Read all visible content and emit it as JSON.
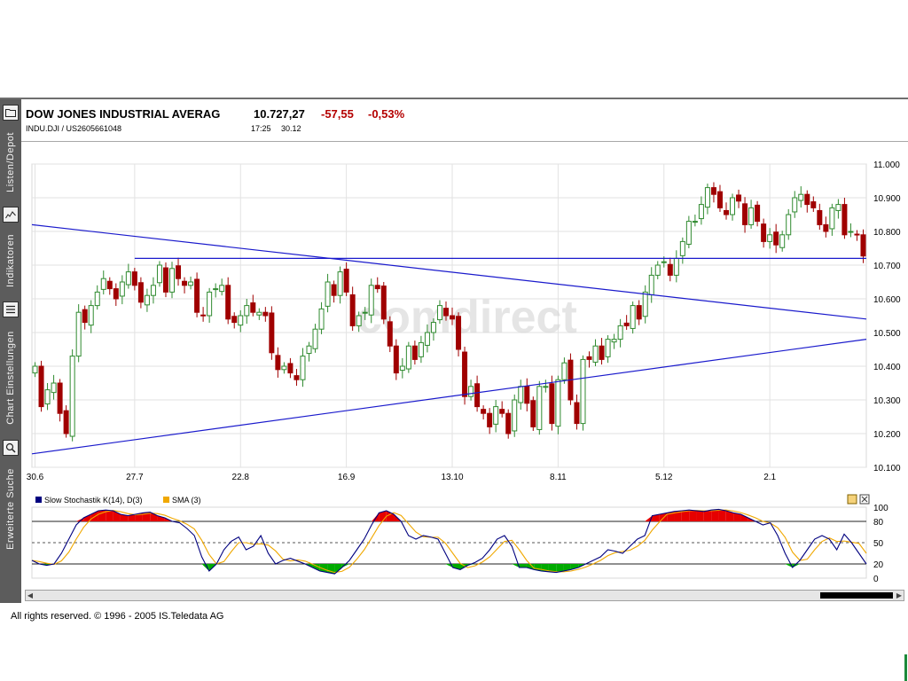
{
  "header": {
    "title": "DOW JONES INDUSTRIAL AVERAG",
    "price": "10.727,27",
    "change": "-57,55",
    "change_pct": "-0,53%",
    "symbol": "INDU.DJI  /  US2605661048",
    "time": "17:25",
    "date": "30.12",
    "change_color": "#b40000"
  },
  "sidebar": {
    "items": [
      {
        "label": "Listen/Depot",
        "icon": "folder-icon"
      },
      {
        "label": "Indikatoren",
        "icon": "indicator-chart-icon"
      },
      {
        "label": "Chart Einstellungen",
        "icon": "settings-list-icon"
      },
      {
        "label": "Erweiterte Suche",
        "icon": "magnifier-icon"
      }
    ]
  },
  "watermark": "comdirect",
  "copyright": "All rights reserved. © 1996 - 2005 IS.Teledata AG",
  "chart_data": [
    {
      "type": "candlestick",
      "title": "DOW JONES INDUSTRIAL AVERAG",
      "ylim": [
        10100,
        11000
      ],
      "y_ticks": [
        "10.100",
        "10.200",
        "10.300",
        "10.400",
        "10.500",
        "10.600",
        "10.700",
        "10.800",
        "10.900",
        "11.000"
      ],
      "x_ticks": [
        "30.6",
        "27.7",
        "22.8",
        "16.9",
        "13.10",
        "8.11",
        "5.12",
        "2.1"
      ],
      "grid": true,
      "up_color": "#2f8a2f",
      "down_color": "#a00000",
      "close": [
        10400,
        10280,
        10330,
        10350,
        10260,
        10200,
        10430,
        10560,
        10530,
        10580,
        10620,
        10660,
        10630,
        10600,
        10650,
        10680,
        10640,
        10590,
        10610,
        10640,
        10700,
        10620,
        10690,
        10660,
        10640,
        10650,
        10560,
        10550,
        10620,
        10630,
        10640,
        10540,
        10530,
        10550,
        10580,
        10560,
        10560,
        10550,
        10440,
        10390,
        10400,
        10380,
        10360,
        10430,
        10460,
        10510,
        10570,
        10650,
        10610,
        10680,
        10620,
        10520,
        10550,
        10560,
        10640,
        10630,
        10540,
        10460,
        10380,
        10400,
        10460,
        10420,
        10470,
        10500,
        10530,
        10580,
        10550,
        10540,
        10450,
        10310,
        10340,
        10280,
        10260,
        10220,
        10280,
        10260,
        10200,
        10300,
        10340,
        10290,
        10220,
        10340,
        10340,
        10230,
        10360,
        10410,
        10300,
        10230,
        10420,
        10420,
        10460,
        10420,
        10480,
        10480,
        10520,
        10520,
        10580,
        10540,
        10620,
        10670,
        10700,
        10710,
        10670,
        10720,
        10770,
        10830,
        10830,
        10880,
        10930,
        10910,
        10870,
        10850,
        10900,
        10890,
        10820,
        10870,
        10830,
        10770,
        10790,
        10760,
        10790,
        10850,
        10900,
        10910,
        10880,
        10870,
        10820,
        10800,
        10870,
        10880,
        10790,
        10800,
        10790,
        10727
      ],
      "series": [
        {
          "name": "Trendlinie 1",
          "color": "#1a1acc",
          "from": [
            "30.6",
            10820
          ],
          "to": [
            "2.1",
            10540
          ]
        },
        {
          "name": "Trendlinie 2",
          "color": "#1a1acc",
          "from": [
            "30.6",
            10140
          ],
          "to": [
            "2.1",
            10480
          ]
        },
        {
          "name": "Trendlinie 3",
          "color": "#1a1acc",
          "from": [
            "27.7",
            10720
          ],
          "to": [
            "2.1",
            10720
          ]
        }
      ]
    },
    {
      "type": "line",
      "legend": [
        {
          "name": "Slow Stochastik K(14), D(3)",
          "color": "#00007f"
        },
        {
          "name": "SMA (3)",
          "color": "#f0a800"
        }
      ],
      "ylim": [
        0,
        100
      ],
      "y_ticks": [
        "0",
        "20",
        "50",
        "80",
        "100"
      ],
      "levels": [
        20,
        50,
        80
      ],
      "overbought_color": "#e60000",
      "oversold_color": "#00aa00",
      "k_values": [
        25,
        20,
        18,
        20,
        35,
        55,
        75,
        85,
        90,
        95,
        96,
        95,
        90,
        88,
        90,
        92,
        93,
        88,
        85,
        80,
        78,
        70,
        60,
        30,
        10,
        20,
        40,
        52,
        58,
        40,
        45,
        60,
        35,
        20,
        25,
        28,
        24,
        20,
        15,
        10,
        8,
        6,
        15,
        25,
        40,
        55,
        75,
        92,
        95,
        90,
        80,
        60,
        55,
        60,
        58,
        55,
        35,
        15,
        12,
        18,
        22,
        28,
        40,
        55,
        60,
        45,
        15,
        15,
        12,
        10,
        9,
        8,
        10,
        12,
        15,
        20,
        25,
        30,
        40,
        38,
        35,
        45,
        55,
        60,
        88,
        90,
        92,
        94,
        95,
        96,
        95,
        94,
        96,
        97,
        95,
        92,
        90,
        85,
        80,
        75,
        78,
        60,
        35,
        15,
        25,
        40,
        55,
        60,
        55,
        40,
        62,
        50,
        35,
        20
      ]
    }
  ]
}
